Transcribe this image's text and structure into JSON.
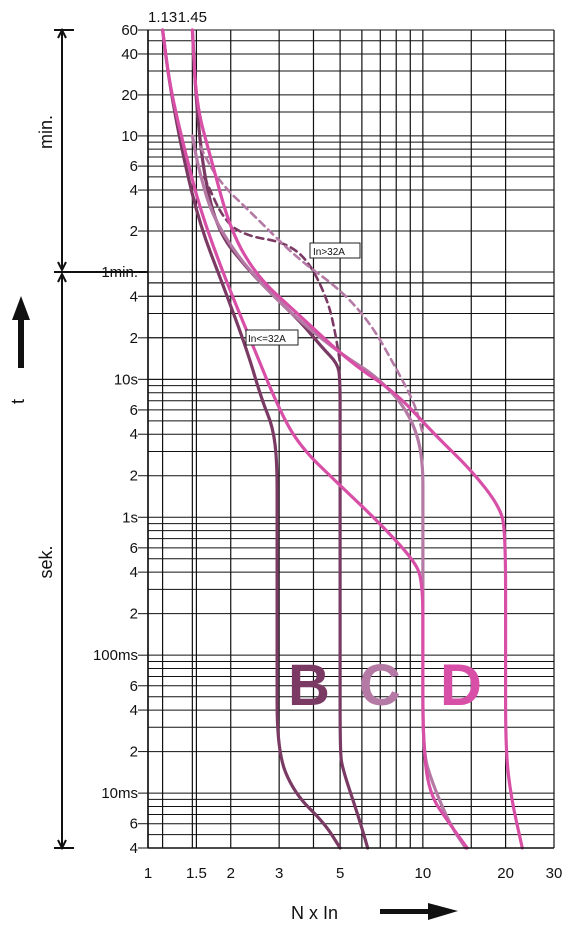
{
  "chart_data": {
    "type": "line",
    "xlabel": "N  x  In",
    "ylabel": "t",
    "x_scale": "log",
    "y_scale": "log",
    "x_ticks": [
      {
        "v": 1,
        "label": "1"
      },
      {
        "v": 1.5,
        "label": "1.5"
      },
      {
        "v": 2,
        "label": "2"
      },
      {
        "v": 3,
        "label": "3"
      },
      {
        "v": 5,
        "label": "5"
      },
      {
        "v": 10,
        "label": "10"
      },
      {
        "v": 20,
        "label": "20"
      },
      {
        "v": 30,
        "label": "30"
      }
    ],
    "top_markers": [
      {
        "v": 1.13,
        "label": "1.13"
      },
      {
        "v": 1.45,
        "label": "1.45"
      }
    ],
    "y_ticks": [
      {
        "s": 3600,
        "label": "60"
      },
      {
        "s": 2400,
        "label": "40"
      },
      {
        "s": 1200,
        "label": "20"
      },
      {
        "s": 600,
        "label": "10"
      },
      {
        "s": 360,
        "label": "6"
      },
      {
        "s": 240,
        "label": "4"
      },
      {
        "s": 120,
        "label": "2"
      },
      {
        "s": 60,
        "label": "1min."
      },
      {
        "s": 40,
        "label": "4"
      },
      {
        "s": 20,
        "label": "2"
      },
      {
        "s": 10,
        "label": "10s"
      },
      {
        "s": 6,
        "label": "6"
      },
      {
        "s": 4,
        "label": "4"
      },
      {
        "s": 2,
        "label": "2"
      },
      {
        "s": 1,
        "label": "1s"
      },
      {
        "s": 0.6,
        "label": "6"
      },
      {
        "s": 0.4,
        "label": "4"
      },
      {
        "s": 0.2,
        "label": "2"
      },
      {
        "s": 0.1,
        "label": "100ms"
      },
      {
        "s": 0.06,
        "label": "6"
      },
      {
        "s": 0.04,
        "label": "4"
      },
      {
        "s": 0.02,
        "label": "2"
      },
      {
        "s": 0.01,
        "label": "10ms"
      },
      {
        "s": 0.006,
        "label": "6"
      },
      {
        "s": 0.004,
        "label": "4"
      }
    ],
    "y_ranges": [
      {
        "label": "min.",
        "from_s": 3600,
        "to_s": 60
      },
      {
        "label": "sek.",
        "from_s": 60,
        "to_s": 0.004
      }
    ],
    "annotations": [
      "In>32A",
      "In<=32A"
    ],
    "curve_labels": [
      {
        "label": "B",
        "color": "#7a3a63"
      },
      {
        "label": "C",
        "color": "#b47aa5"
      },
      {
        "label": "D",
        "color": "#d84fa7"
      }
    ],
    "series": [
      {
        "color": "#7a3a63",
        "style": "solid",
        "points": [
          [
            1.13,
            3600
          ],
          [
            1.2,
            1400
          ],
          [
            1.35,
            400
          ],
          [
            1.55,
            130
          ],
          [
            1.9,
            45
          ],
          [
            2.3,
            16
          ],
          [
            2.6,
            7
          ],
          [
            2.85,
            4.5
          ],
          [
            2.95,
            2.5
          ],
          [
            2.95,
            1.0
          ],
          [
            2.95,
            0.1
          ],
          [
            2.95,
            0.02
          ],
          [
            3.4,
            0.01
          ],
          [
            4.4,
            0.006
          ],
          [
            5.0,
            0.004
          ]
        ]
      },
      {
        "color": "#7a3a63",
        "style": "solid",
        "points": [
          [
            1.45,
            3600
          ],
          [
            1.5,
            1000
          ],
          [
            1.6,
            300
          ],
          [
            1.8,
            120
          ],
          [
            2.2,
            70
          ],
          [
            2.8,
            42
          ],
          [
            3.6,
            26
          ],
          [
            4.3,
            17
          ],
          [
            4.9,
            13
          ],
          [
            5.0,
            10
          ],
          [
            5.0,
            4
          ],
          [
            5.0,
            1
          ],
          [
            5.0,
            0.1
          ],
          [
            5.0,
            0.02
          ],
          [
            5.1,
            0.015
          ],
          [
            5.8,
            0.007
          ],
          [
            6.3,
            0.004
          ]
        ]
      },
      {
        "color": "#7a3a63",
        "style": "dashed",
        "points": [
          [
            1.6,
            300
          ],
          [
            1.9,
            140
          ],
          [
            2.3,
            110
          ],
          [
            3.1,
            100
          ],
          [
            3.8,
            75
          ],
          [
            4.5,
            38
          ],
          [
            4.8,
            22
          ],
          [
            5.0,
            13
          ]
        ]
      },
      {
        "color": "#b47aa5",
        "style": "solid",
        "points": [
          [
            1.45,
            600
          ],
          [
            1.52,
            360
          ],
          [
            1.7,
            160
          ],
          [
            2.1,
            80
          ],
          [
            2.7,
            45
          ],
          [
            3.6,
            26
          ],
          [
            5.1,
            15
          ],
          [
            6.8,
            10.5
          ],
          [
            8.8,
            6
          ],
          [
            10,
            3
          ],
          [
            10,
            1
          ],
          [
            10,
            0.1
          ],
          [
            10,
            0.02
          ],
          [
            10.8,
            0.012
          ],
          [
            12.5,
            0.006
          ],
          [
            14.3,
            0.004
          ]
        ]
      },
      {
        "color": "#b47aa5",
        "style": "dashed",
        "points": [
          [
            1.55,
            500
          ],
          [
            1.8,
            280
          ],
          [
            2.4,
            160
          ],
          [
            3.5,
            75
          ],
          [
            5.0,
            45
          ],
          [
            6.5,
            25
          ],
          [
            8.0,
            12
          ],
          [
            9.4,
            6.5
          ],
          [
            10,
            4
          ]
        ]
      },
      {
        "color": "#d84fa7",
        "style": "solid",
        "points": [
          [
            1.13,
            3600
          ],
          [
            1.2,
            1400
          ],
          [
            1.35,
            500
          ],
          [
            1.55,
            170
          ],
          [
            1.9,
            55
          ],
          [
            2.3,
            22
          ],
          [
            3.0,
            6
          ],
          [
            3.6,
            3.2
          ],
          [
            5.0,
            1.7
          ],
          [
            6.8,
            0.95
          ],
          [
            9.2,
            0.5
          ],
          [
            10,
            0.35
          ],
          [
            10,
            0.1
          ],
          [
            10,
            0.025
          ],
          [
            10.5,
            0.01
          ],
          [
            12.5,
            0.006
          ],
          [
            14.5,
            0.004
          ]
        ]
      },
      {
        "color": "#d84fa7",
        "style": "solid",
        "points": [
          [
            1.45,
            3600
          ],
          [
            1.5,
            1000
          ],
          [
            1.7,
            400
          ],
          [
            2.0,
            120
          ],
          [
            2.5,
            55
          ],
          [
            3.5,
            30
          ],
          [
            5.5,
            13
          ],
          [
            8,
            8
          ],
          [
            11,
            4
          ],
          [
            15,
            2.2
          ],
          [
            19,
            1.2
          ],
          [
            20,
            0.8
          ],
          [
            20,
            0.1
          ],
          [
            20,
            0.02
          ],
          [
            21,
            0.009
          ],
          [
            23,
            0.004
          ]
        ]
      }
    ]
  },
  "curve_letters": {
    "b": "B",
    "c": "C",
    "d": "D"
  },
  "colors": {
    "b": "#7a3a63",
    "c": "#b47aa5",
    "d": "#d84fa7"
  }
}
